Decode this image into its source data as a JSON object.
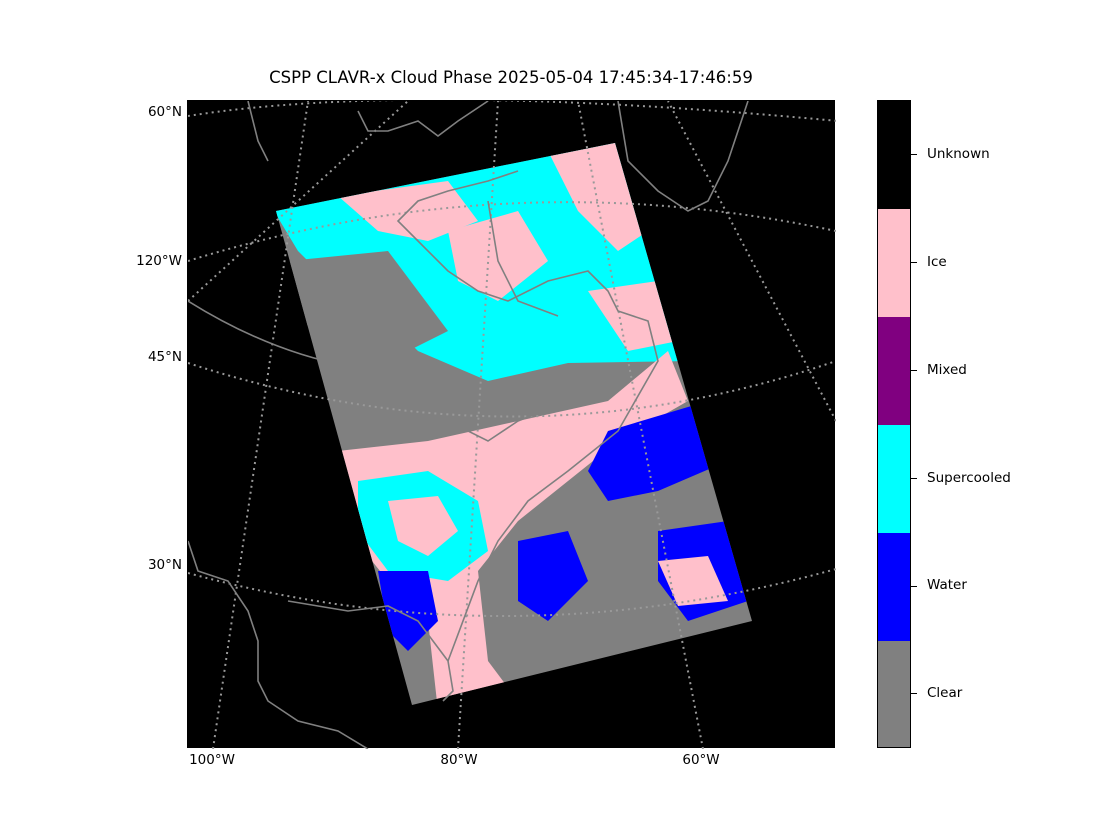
{
  "title": "CSPP CLAVR-x Cloud Phase 2025-05-04 17:45:34-17:46:59",
  "lat_labels": [
    "60°N",
    "120°W",
    "45°N",
    "30°N"
  ],
  "lon_labels": [
    "100°W",
    "80°W",
    "60°W"
  ],
  "colorbar": {
    "classes": [
      {
        "label": "Unknown",
        "color": "#000000"
      },
      {
        "label": "Ice",
        "color": "#ffc0cb"
      },
      {
        "label": "Mixed",
        "color": "#800080"
      },
      {
        "label": "Supercooled",
        "color": "#00ffff"
      },
      {
        "label": "Water",
        "color": "#0000ff"
      },
      {
        "label": "Clear",
        "color": "#808080"
      }
    ]
  },
  "colors": {
    "background": "#000000",
    "coastline": "#808080",
    "gridline": "#999999",
    "swath_clear": "#808080",
    "swath_ice": "#ffc0cb",
    "swath_supercooled": "#00ffff",
    "swath_water": "#0000ff"
  }
}
